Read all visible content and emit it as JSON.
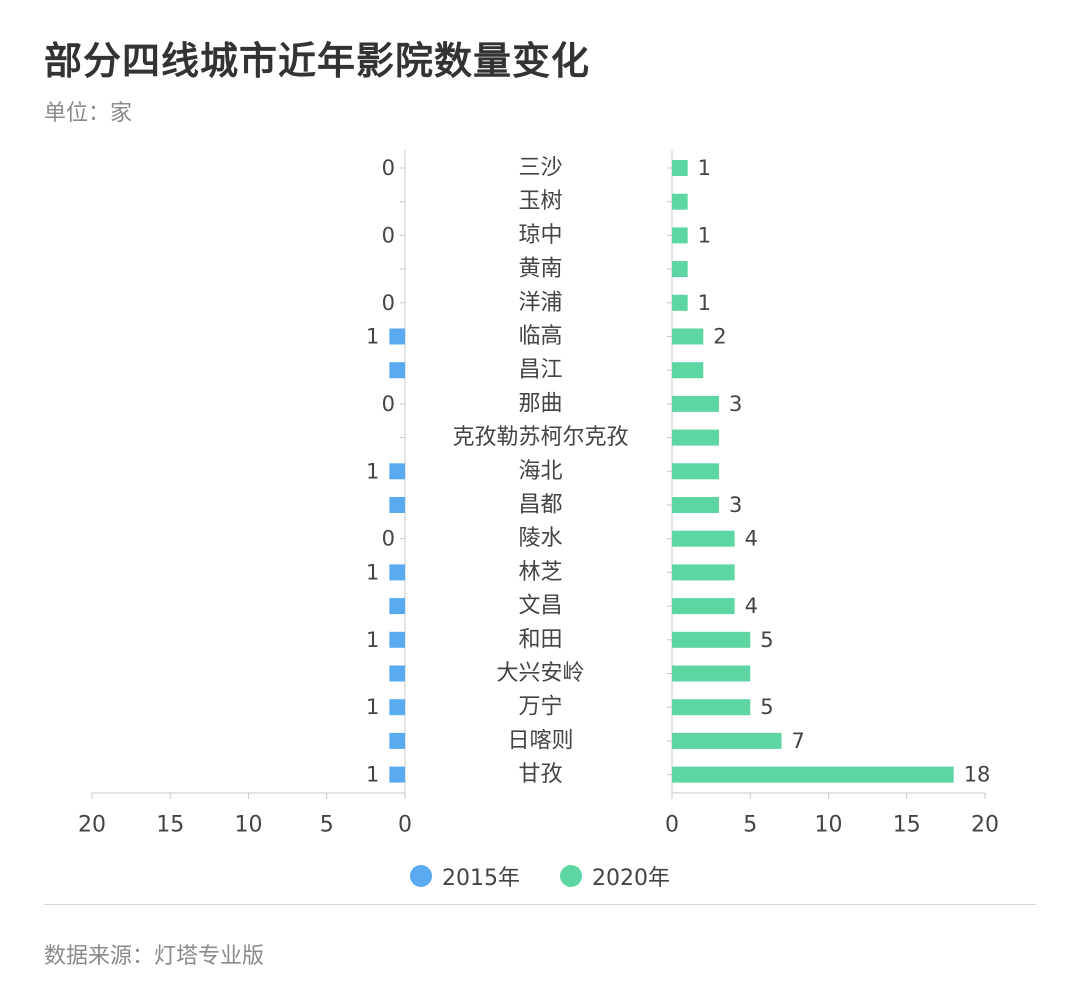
{
  "title": "部分四线城市近年影院数量变化",
  "unit": "单位：家",
  "source": "数据来源：灯塔专业版",
  "colors": {
    "2015": "#5aaaf0",
    "2020": "#5dd6a4"
  },
  "chart_data": {
    "type": "bar",
    "orientation": "horizontal-butterfly",
    "categories": [
      "三沙",
      "玉树",
      "琼中",
      "黄南",
      "洋浦",
      "临高",
      "昌江",
      "那曲",
      "克孜勒苏柯尔克孜",
      "海北",
      "昌都",
      "陵水",
      "林芝",
      "文昌",
      "和田",
      "大兴安岭",
      "万宁",
      "日喀则",
      "甘孜"
    ],
    "series": [
      {
        "name": "2015年",
        "values": [
          0,
          0,
          0,
          0,
          0,
          1,
          1,
          0,
          0,
          1,
          1,
          0,
          1,
          1,
          1,
          1,
          1,
          1,
          1
        ],
        "labels": [
          "0",
          "",
          "0",
          "",
          "0",
          "1",
          "",
          "0",
          "",
          "1",
          "",
          "0",
          "1",
          "",
          "1",
          "",
          "1",
          "",
          "1"
        ]
      },
      {
        "name": "2020年",
        "values": [
          1,
          1,
          1,
          1,
          1,
          2,
          2,
          3,
          3,
          3,
          3,
          4,
          4,
          4,
          5,
          5,
          5,
          7,
          18
        ],
        "labels": [
          "1",
          "",
          "1",
          "",
          "1",
          "2",
          "",
          "3",
          "",
          "",
          "3",
          "4",
          "",
          "4",
          "5",
          "",
          "5",
          "7",
          "18"
        ]
      }
    ],
    "xlim": [
      0,
      20
    ],
    "xticks": [
      "20",
      "15",
      "10",
      "5",
      "0"
    ],
    "xticks_right": [
      "0",
      "5",
      "10",
      "15",
      "20"
    ],
    "legend": "bottom-center"
  }
}
